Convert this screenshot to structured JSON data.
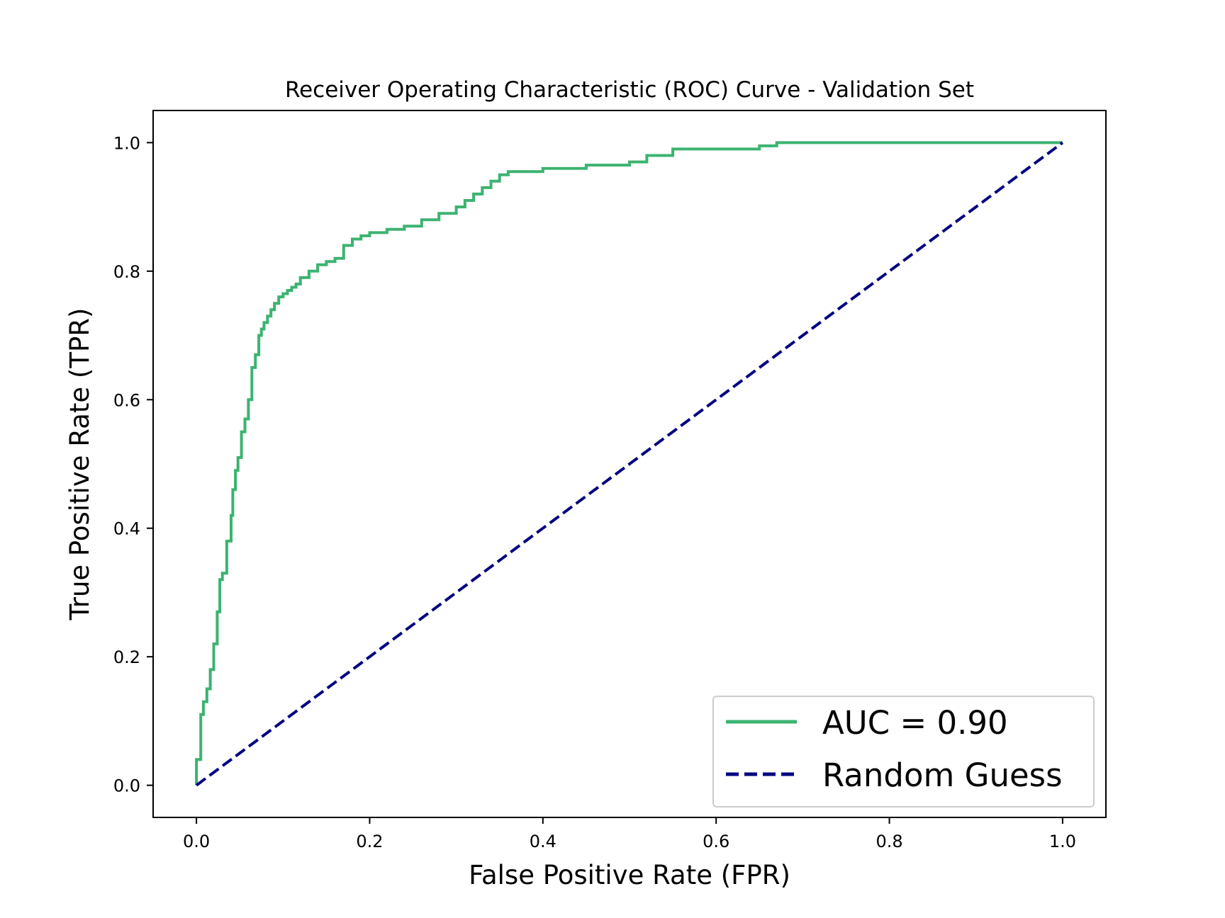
{
  "chart_data": {
    "type": "line",
    "title": "Receiver Operating Characteristic (ROC) Curve - Validation Set",
    "xlabel": "False Positive Rate (FPR)",
    "ylabel": "True Positive Rate (TPR)",
    "xlim": [
      -0.05,
      1.05
    ],
    "ylim": [
      -0.05,
      1.05
    ],
    "xticks": [
      "0.0",
      "0.2",
      "0.4",
      "0.6",
      "0.8",
      "1.0"
    ],
    "yticks": [
      "0.0",
      "0.2",
      "0.4",
      "0.6",
      "0.8",
      "1.0"
    ],
    "grid": false,
    "legend_position": "lower-right",
    "series": [
      {
        "name": "AUC = 0.90",
        "color": "#3cb371",
        "style": "solid",
        "x": [
          0.0,
          0.0,
          0.005,
          0.005,
          0.008,
          0.008,
          0.012,
          0.012,
          0.016,
          0.016,
          0.02,
          0.02,
          0.024,
          0.024,
          0.027,
          0.027,
          0.03,
          0.03,
          0.035,
          0.035,
          0.04,
          0.04,
          0.042,
          0.042,
          0.045,
          0.045,
          0.048,
          0.048,
          0.052,
          0.052,
          0.056,
          0.056,
          0.06,
          0.06,
          0.064,
          0.064,
          0.068,
          0.068,
          0.072,
          0.072,
          0.075,
          0.075,
          0.078,
          0.078,
          0.082,
          0.082,
          0.086,
          0.086,
          0.09,
          0.09,
          0.095,
          0.095,
          0.1,
          0.1,
          0.105,
          0.105,
          0.11,
          0.11,
          0.115,
          0.115,
          0.12,
          0.12,
          0.13,
          0.13,
          0.14,
          0.14,
          0.15,
          0.15,
          0.16,
          0.16,
          0.17,
          0.17,
          0.18,
          0.18,
          0.19,
          0.19,
          0.2,
          0.2,
          0.22,
          0.22,
          0.24,
          0.24,
          0.26,
          0.26,
          0.28,
          0.28,
          0.3,
          0.3,
          0.31,
          0.31,
          0.32,
          0.32,
          0.33,
          0.33,
          0.34,
          0.34,
          0.35,
          0.35,
          0.36,
          0.36,
          0.4,
          0.4,
          0.45,
          0.45,
          0.5,
          0.5,
          0.52,
          0.52,
          0.55,
          0.55,
          0.65,
          0.65,
          0.67,
          0.67,
          1.0
        ],
        "y": [
          0.0,
          0.04,
          0.04,
          0.11,
          0.11,
          0.13,
          0.13,
          0.15,
          0.15,
          0.18,
          0.18,
          0.22,
          0.22,
          0.27,
          0.27,
          0.32,
          0.32,
          0.33,
          0.33,
          0.38,
          0.38,
          0.42,
          0.42,
          0.46,
          0.46,
          0.49,
          0.49,
          0.51,
          0.51,
          0.55,
          0.55,
          0.57,
          0.57,
          0.6,
          0.6,
          0.65,
          0.65,
          0.67,
          0.67,
          0.7,
          0.7,
          0.71,
          0.71,
          0.72,
          0.72,
          0.73,
          0.73,
          0.74,
          0.74,
          0.75,
          0.75,
          0.76,
          0.76,
          0.765,
          0.765,
          0.77,
          0.77,
          0.775,
          0.775,
          0.78,
          0.78,
          0.79,
          0.79,
          0.8,
          0.8,
          0.81,
          0.81,
          0.815,
          0.815,
          0.82,
          0.82,
          0.84,
          0.84,
          0.85,
          0.85,
          0.855,
          0.855,
          0.86,
          0.86,
          0.865,
          0.865,
          0.87,
          0.87,
          0.88,
          0.88,
          0.89,
          0.89,
          0.9,
          0.9,
          0.91,
          0.91,
          0.92,
          0.92,
          0.93,
          0.93,
          0.94,
          0.94,
          0.95,
          0.95,
          0.955,
          0.955,
          0.96,
          0.96,
          0.965,
          0.965,
          0.97,
          0.97,
          0.98,
          0.98,
          0.99,
          0.99,
          0.995,
          0.995,
          1.0,
          1.0
        ]
      },
      {
        "name": "Random Guess",
        "color": "#000080",
        "style": "dashed",
        "x": [
          0.0,
          1.0
        ],
        "y": [
          0.0,
          1.0
        ]
      }
    ]
  }
}
